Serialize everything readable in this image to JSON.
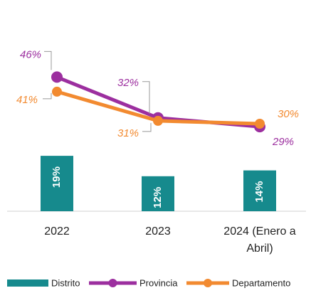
{
  "chart_data": {
    "type": "bar_line",
    "categories": [
      "2022",
      "2023",
      "2024 (Enero a Abril)"
    ],
    "ylim": [
      0,
      50
    ],
    "series": [
      {
        "name": "Distrito",
        "type": "bar",
        "color": "#168a8d",
        "values": [
          19,
          12,
          14
        ],
        "value_labels": [
          "19%",
          "12%",
          "14%"
        ]
      },
      {
        "name": "Provincia",
        "type": "line",
        "color": "#9c2f9f",
        "values": [
          46,
          32,
          29
        ],
        "value_labels": [
          "46%",
          "32%",
          "29%"
        ]
      },
      {
        "name": "Departamento",
        "type": "line",
        "color": "#f28a30",
        "values": [
          41,
          31,
          30
        ],
        "value_labels": [
          "41%",
          "31%",
          "30%"
        ]
      }
    ]
  }
}
